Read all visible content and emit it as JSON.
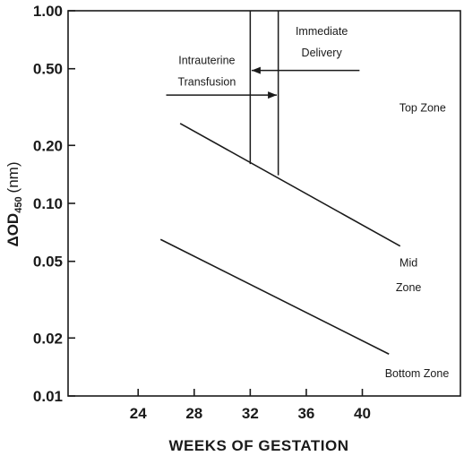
{
  "chart_data": {
    "type": "line",
    "xlabel": "WEEKS OF GESTATION",
    "ylabel_main": "ΔOD",
    "ylabel_sub": "450",
    "ylabel_unit": "(nm)",
    "xlim": [
      19,
      47
    ],
    "ylim": [
      0.01,
      1.0
    ],
    "yscale": "log",
    "grid": false,
    "legend": "none",
    "x_ticks": [
      24,
      28,
      32,
      36,
      40
    ],
    "x_tick_labels": [
      "24",
      "28",
      "32",
      "36",
      "40"
    ],
    "y_ticks": [
      1.0,
      0.5,
      0.2,
      0.1,
      0.05,
      0.02,
      0.01
    ],
    "y_tick_labels": [
      "1.00",
      "0.50",
      "0.20",
      "0.10",
      "0.05",
      "0.02",
      "0.01"
    ],
    "series": [
      {
        "x": [
          27,
          42.7
        ],
        "y": [
          0.26,
          0.06
        ]
      },
      {
        "x": [
          25.6,
          41.9
        ],
        "y": [
          0.065,
          0.0165
        ]
      }
    ],
    "vertical_markers": [
      {
        "x": 32,
        "y_from": 0.16,
        "y_to": 1.0
      },
      {
        "x": 34,
        "y_from": 0.14,
        "y_to": 1.0
      }
    ],
    "arrows": [
      {
        "from": [
          39.8,
          0.49
        ],
        "to": [
          32.1,
          0.49
        ]
      },
      {
        "from": [
          26,
          0.365
        ],
        "to": [
          33.9,
          0.365
        ]
      }
    ],
    "annotations": [
      {
        "lines": [
          "Immediate",
          "Delivery"
        ],
        "x": 37.1,
        "y": [
          0.75,
          0.58
        ]
      },
      {
        "lines": [
          "Intrauterine",
          "Transfusion"
        ],
        "x": 28.9,
        "y": [
          0.53,
          0.41
        ]
      },
      {
        "lines": [
          "Top Zone"
        ],
        "x": 44.3,
        "y": [
          0.3
        ]
      },
      {
        "lines": [
          "Mid",
          "Zone"
        ],
        "x": 43.3,
        "y": [
          0.047,
          0.035
        ]
      },
      {
        "lines": [
          "Bottom Zone"
        ],
        "x": 43.9,
        "y": [
          0.0125
        ]
      }
    ]
  }
}
